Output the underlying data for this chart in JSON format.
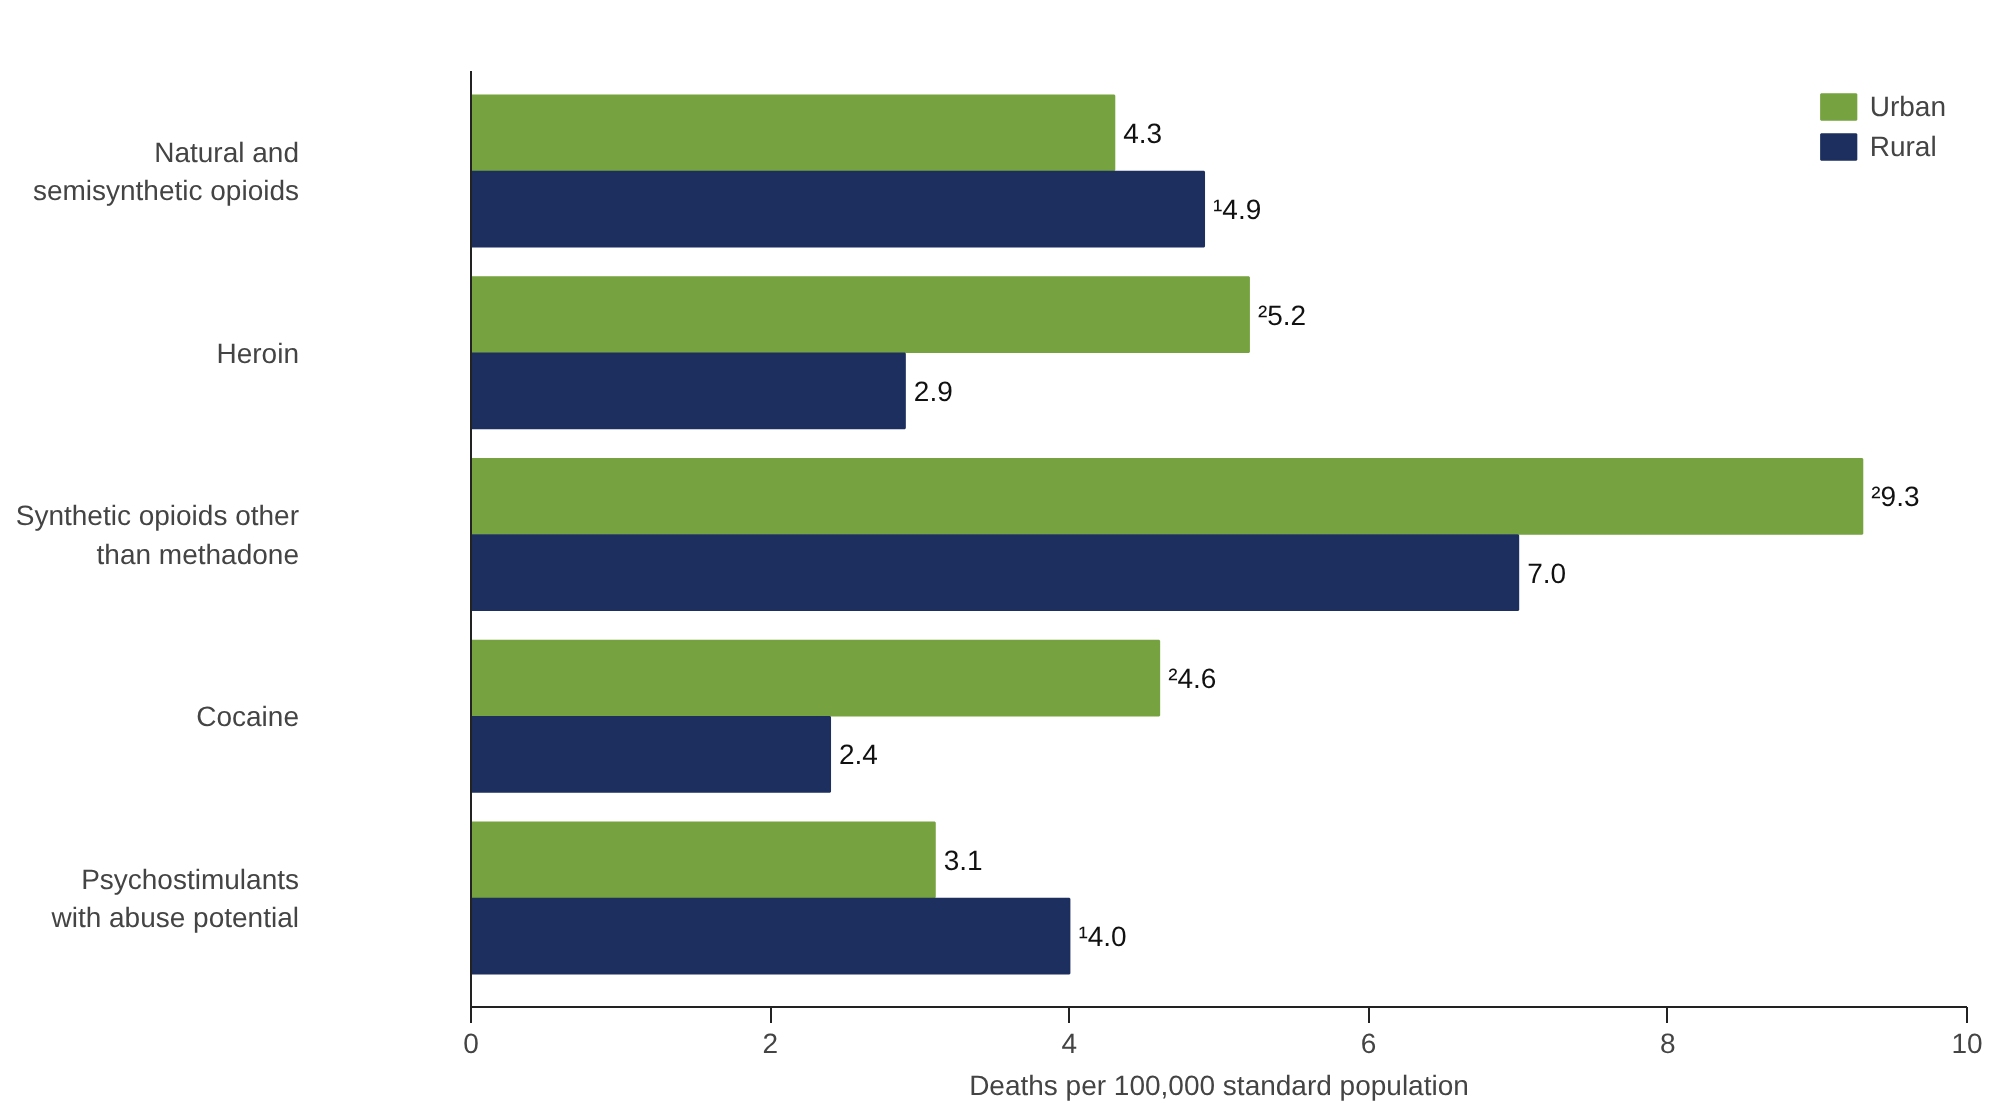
{
  "chart_data": {
    "type": "bar",
    "orientation": "horizontal",
    "xlabel": "Deaths per 100,000 standard population",
    "categories": [
      "Natural and\nsemisynthetic opioids",
      "Heroin",
      "Synthetic opioids other\nthan methadone",
      "Cocaine",
      "Psychostimulants\nwith abuse potential"
    ],
    "series": [
      {
        "name": "Urban",
        "color": "#76a33f",
        "values": [
          4.3,
          5.2,
          9.3,
          4.6,
          3.1
        ],
        "value_labels": [
          "4.3",
          "²5.2",
          "²9.3",
          "²4.6",
          "3.1"
        ]
      },
      {
        "name": "Rural",
        "color": "#1c2f5e",
        "values": [
          4.9,
          2.9,
          7.0,
          2.4,
          4.0
        ],
        "value_labels": [
          "¹4.9",
          "2.9",
          "7.0",
          "2.4",
          "¹4.0"
        ]
      }
    ],
    "xlim": [
      0,
      10
    ],
    "xticks": [
      0,
      2,
      4,
      6,
      8,
      10
    ],
    "grid": false,
    "legend": "top right"
  }
}
